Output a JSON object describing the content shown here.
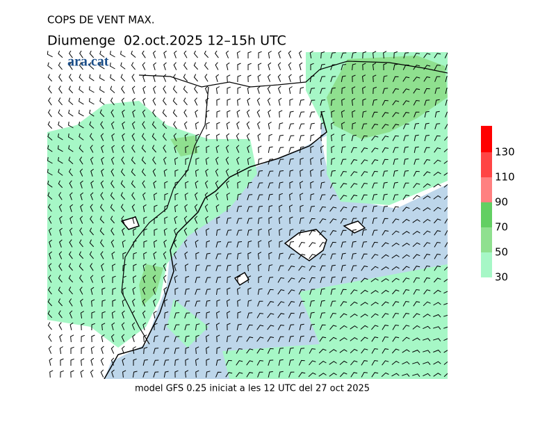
{
  "header": {
    "title": "COPS DE VENT MAX.",
    "subtitle": "Diumenge  02.oct.2025 12–15h UTC"
  },
  "logo": "ara.cat",
  "colorbar": {
    "levels": [
      30,
      50,
      70,
      90,
      110,
      130
    ],
    "colors": [
      "#a6f7c6",
      "#8fe08f",
      "#62cf62",
      "#ff8080",
      "#ff4545",
      "#ff0000"
    ]
  },
  "footer": "model GFS 0.25 iniciat a les 12 UTC del 27 oct 2025"
}
